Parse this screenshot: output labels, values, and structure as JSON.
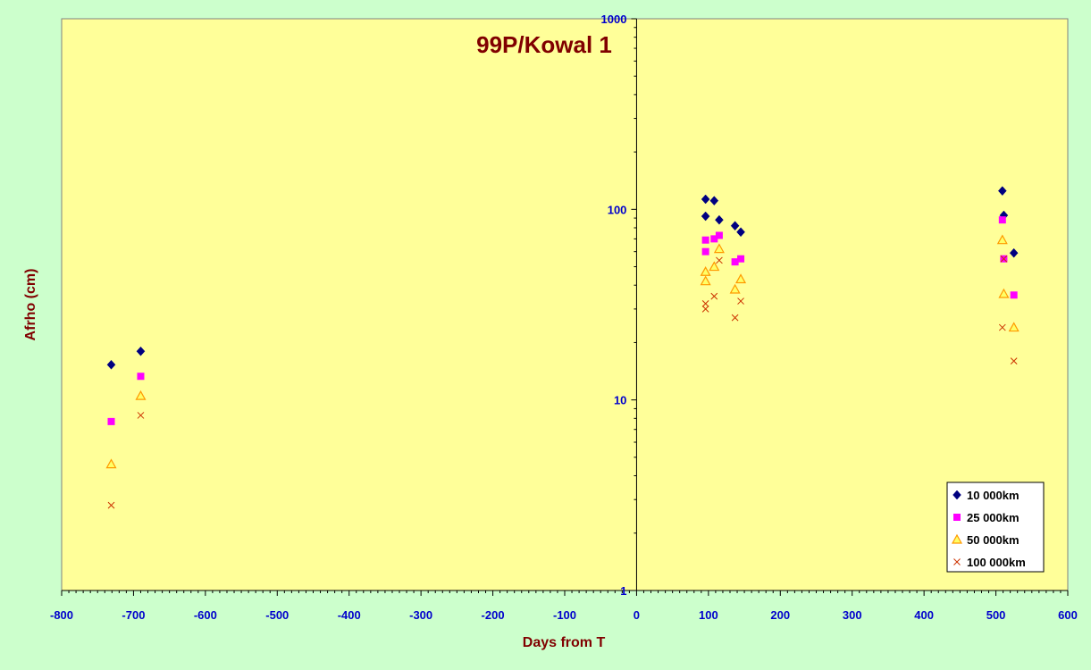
{
  "chart_data": {
    "type": "scatter",
    "title": "99P/Kowal 1",
    "xlabel": "Days from T",
    "ylabel": "Afrho (cm)",
    "xlim": [
      -800,
      600
    ],
    "x_ticks": [
      -800,
      -700,
      -600,
      -500,
      -400,
      -300,
      -200,
      -100,
      0,
      100,
      200,
      300,
      400,
      500,
      600
    ],
    "ylim": [
      1,
      1000
    ],
    "y_scale": "log",
    "y_ticks": [
      1,
      10,
      100,
      1000
    ],
    "grid": false,
    "legend_position": "bottom-right",
    "colors": {
      "plot_bg": "#ffff99",
      "page_bg": "#ccffcc",
      "tick_text": "#0000cc",
      "title_text": "#800000"
    },
    "series": [
      {
        "name": "10 000km",
        "marker": "diamond",
        "color": "#000080",
        "points": [
          [
            -731,
            15.3
          ],
          [
            -690,
            18.0
          ],
          [
            96,
            113
          ],
          [
            96,
            92
          ],
          [
            108,
            111
          ],
          [
            115,
            88
          ],
          [
            137,
            82
          ],
          [
            145,
            76
          ],
          [
            509,
            125
          ],
          [
            511,
            93
          ],
          [
            525,
            59
          ]
        ]
      },
      {
        "name": "25 000km",
        "marker": "square",
        "color": "#ff00ff",
        "points": [
          [
            -731,
            7.7
          ],
          [
            -690,
            13.3
          ],
          [
            96,
            69
          ],
          [
            96,
            60
          ],
          [
            108,
            70
          ],
          [
            115,
            73
          ],
          [
            137,
            53
          ],
          [
            145,
            55
          ],
          [
            509,
            88
          ],
          [
            511,
            55
          ],
          [
            525,
            35.5
          ]
        ]
      },
      {
        "name": "50 000km",
        "marker": "triangle",
        "color": "#ff9900",
        "points": [
          [
            -731,
            4.6
          ],
          [
            -690,
            10.5
          ],
          [
            96,
            47
          ],
          [
            96,
            42
          ],
          [
            108,
            50
          ],
          [
            115,
            62
          ],
          [
            137,
            38
          ],
          [
            145,
            43
          ],
          [
            509,
            69
          ],
          [
            511,
            36
          ],
          [
            525,
            24
          ]
        ]
      },
      {
        "name": "100 000km",
        "marker": "cross",
        "color": "#cc3300",
        "points": [
          [
            -731,
            2.8
          ],
          [
            -690,
            8.3
          ],
          [
            96,
            32
          ],
          [
            96,
            30
          ],
          [
            108,
            35
          ],
          [
            115,
            54
          ],
          [
            137,
            27
          ],
          [
            145,
            33
          ],
          [
            509,
            24
          ],
          [
            511,
            55
          ],
          [
            525,
            16
          ]
        ]
      }
    ]
  }
}
